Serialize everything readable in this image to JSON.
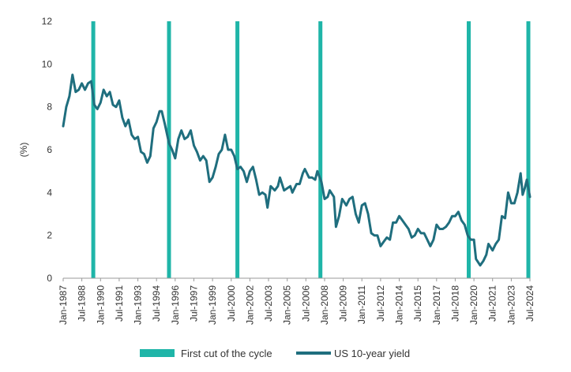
{
  "chart_data": {
    "type": "line",
    "ylabel": "(%)",
    "ylim": [
      0,
      12
    ],
    "yticks": [
      0,
      2,
      4,
      6,
      8,
      10,
      12
    ],
    "xlim": [
      "1987-01",
      "2024-07"
    ],
    "xticks": [
      "Jan-1987",
      "Jul-1988",
      "Jan-1990",
      "Jul-1991",
      "Jan-1993",
      "Jul-1994",
      "Jan-1996",
      "Jul-1997",
      "Jan-1999",
      "Jul-2000",
      "Jan-2002",
      "Jul-2003",
      "Jan-2005",
      "Jul-2006",
      "Jan-2008",
      "Jul-2009",
      "Jan-2011",
      "Jul-2012",
      "Jan-2014",
      "Jul-2015",
      "Jan-2017",
      "Jul-2018",
      "Jan-2020",
      "Jul-2021",
      "Jan-2023",
      "Jul-2024"
    ],
    "grid": false,
    "legend_position": "bottom",
    "colors": {
      "first_cut": "#1fb5a8",
      "yield": "#1f6e7e"
    },
    "series": [
      {
        "name": "US 10-year yield",
        "points": [
          [
            "1987-01",
            7.1
          ],
          [
            "1987-04",
            8.0
          ],
          [
            "1987-07",
            8.5
          ],
          [
            "1987-10",
            9.5
          ],
          [
            "1988-01",
            8.7
          ],
          [
            "1988-04",
            8.8
          ],
          [
            "1988-07",
            9.1
          ],
          [
            "1988-10",
            8.8
          ],
          [
            "1989-01",
            9.1
          ],
          [
            "1989-04",
            9.2
          ],
          [
            "1989-07",
            8.1
          ],
          [
            "1989-10",
            7.9
          ],
          [
            "1990-01",
            8.2
          ],
          [
            "1990-04",
            8.8
          ],
          [
            "1990-07",
            8.5
          ],
          [
            "1990-10",
            8.7
          ],
          [
            "1991-01",
            8.1
          ],
          [
            "1991-04",
            8.0
          ],
          [
            "1991-07",
            8.3
          ],
          [
            "1991-10",
            7.5
          ],
          [
            "1992-01",
            7.1
          ],
          [
            "1992-04",
            7.4
          ],
          [
            "1992-07",
            6.7
          ],
          [
            "1992-10",
            6.5
          ],
          [
            "1993-01",
            6.6
          ],
          [
            "1993-04",
            5.9
          ],
          [
            "1993-07",
            5.8
          ],
          [
            "1993-10",
            5.4
          ],
          [
            "1994-01",
            5.7
          ],
          [
            "1994-04",
            7.0
          ],
          [
            "1994-07",
            7.3
          ],
          [
            "1994-10",
            7.8
          ],
          [
            "1994-12",
            7.8
          ],
          [
            "1995-03",
            7.2
          ],
          [
            "1995-07",
            6.3
          ],
          [
            "1995-10",
            6.0
          ],
          [
            "1996-01",
            5.6
          ],
          [
            "1996-04",
            6.5
          ],
          [
            "1996-07",
            6.9
          ],
          [
            "1996-10",
            6.5
          ],
          [
            "1997-01",
            6.6
          ],
          [
            "1997-04",
            6.9
          ],
          [
            "1997-07",
            6.2
          ],
          [
            "1997-10",
            5.9
          ],
          [
            "1998-01",
            5.5
          ],
          [
            "1998-04",
            5.7
          ],
          [
            "1998-07",
            5.5
          ],
          [
            "1998-10",
            4.5
          ],
          [
            "1999-01",
            4.7
          ],
          [
            "1999-04",
            5.2
          ],
          [
            "1999-07",
            5.8
          ],
          [
            "1999-10",
            6.0
          ],
          [
            "2000-01",
            6.7
          ],
          [
            "2000-04",
            6.0
          ],
          [
            "2000-07",
            6.0
          ],
          [
            "2000-10",
            5.7
          ],
          [
            "2001-01",
            5.1
          ],
          [
            "2001-04",
            5.2
          ],
          [
            "2001-07",
            5.0
          ],
          [
            "2001-10",
            4.5
          ],
          [
            "2002-01",
            5.0
          ],
          [
            "2002-04",
            5.2
          ],
          [
            "2002-07",
            4.6
          ],
          [
            "2002-10",
            3.9
          ],
          [
            "2003-01",
            4.0
          ],
          [
            "2003-04",
            3.9
          ],
          [
            "2003-06",
            3.3
          ],
          [
            "2003-09",
            4.3
          ],
          [
            "2004-01",
            4.1
          ],
          [
            "2004-04",
            4.3
          ],
          [
            "2004-06",
            4.7
          ],
          [
            "2004-10",
            4.1
          ],
          [
            "2005-01",
            4.2
          ],
          [
            "2005-04",
            4.3
          ],
          [
            "2005-06",
            4.0
          ],
          [
            "2005-10",
            4.4
          ],
          [
            "2006-01",
            4.4
          ],
          [
            "2006-04",
            4.9
          ],
          [
            "2006-06",
            5.1
          ],
          [
            "2006-10",
            4.7
          ],
          [
            "2007-01",
            4.7
          ],
          [
            "2007-04",
            4.6
          ],
          [
            "2007-06",
            5.0
          ],
          [
            "2007-10",
            4.5
          ],
          [
            "2008-01",
            3.7
          ],
          [
            "2008-04",
            3.8
          ],
          [
            "2008-06",
            4.1
          ],
          [
            "2008-10",
            3.8
          ],
          [
            "2008-12",
            2.4
          ],
          [
            "2009-03",
            2.9
          ],
          [
            "2009-06",
            3.7
          ],
          [
            "2009-10",
            3.4
          ],
          [
            "2010-01",
            3.7
          ],
          [
            "2010-04",
            3.8
          ],
          [
            "2010-07",
            3.0
          ],
          [
            "2010-10",
            2.6
          ],
          [
            "2011-01",
            3.4
          ],
          [
            "2011-04",
            3.5
          ],
          [
            "2011-07",
            3.0
          ],
          [
            "2011-10",
            2.1
          ],
          [
            "2012-01",
            2.0
          ],
          [
            "2012-04",
            2.0
          ],
          [
            "2012-07",
            1.5
          ],
          [
            "2012-10",
            1.7
          ],
          [
            "2013-01",
            1.9
          ],
          [
            "2013-04",
            1.8
          ],
          [
            "2013-07",
            2.6
          ],
          [
            "2013-10",
            2.6
          ],
          [
            "2014-01",
            2.9
          ],
          [
            "2014-04",
            2.7
          ],
          [
            "2014-07",
            2.5
          ],
          [
            "2014-10",
            2.3
          ],
          [
            "2015-01",
            1.9
          ],
          [
            "2015-04",
            2.0
          ],
          [
            "2015-07",
            2.3
          ],
          [
            "2015-10",
            2.1
          ],
          [
            "2016-01",
            2.1
          ],
          [
            "2016-04",
            1.8
          ],
          [
            "2016-07",
            1.5
          ],
          [
            "2016-10",
            1.8
          ],
          [
            "2017-01",
            2.5
          ],
          [
            "2017-04",
            2.3
          ],
          [
            "2017-07",
            2.3
          ],
          [
            "2017-10",
            2.4
          ],
          [
            "2018-01",
            2.6
          ],
          [
            "2018-04",
            2.9
          ],
          [
            "2018-07",
            2.9
          ],
          [
            "2018-10",
            3.1
          ],
          [
            "2019-01",
            2.7
          ],
          [
            "2019-04",
            2.5
          ],
          [
            "2019-07",
            2.0
          ],
          [
            "2019-10",
            1.8
          ],
          [
            "2020-01",
            1.8
          ],
          [
            "2020-03",
            0.9
          ],
          [
            "2020-07",
            0.6
          ],
          [
            "2020-10",
            0.8
          ],
          [
            "2021-01",
            1.1
          ],
          [
            "2021-03",
            1.6
          ],
          [
            "2021-07",
            1.3
          ],
          [
            "2021-10",
            1.6
          ],
          [
            "2022-01",
            1.8
          ],
          [
            "2022-04",
            2.9
          ],
          [
            "2022-07",
            2.8
          ],
          [
            "2022-10",
            4.0
          ],
          [
            "2023-01",
            3.5
          ],
          [
            "2023-04",
            3.5
          ],
          [
            "2023-07",
            4.0
          ],
          [
            "2023-10",
            4.9
          ],
          [
            "2023-12",
            3.9
          ],
          [
            "2024-02",
            4.2
          ],
          [
            "2024-04",
            4.6
          ],
          [
            "2024-07",
            3.8
          ]
        ]
      }
    ],
    "first_cuts": [
      "1989-06",
      "1995-07",
      "2001-01",
      "2007-09",
      "2019-08",
      "2024-09"
    ],
    "legend": {
      "first_cut_label": "First cut of the cycle",
      "yield_label": "US 10-year yield"
    }
  }
}
